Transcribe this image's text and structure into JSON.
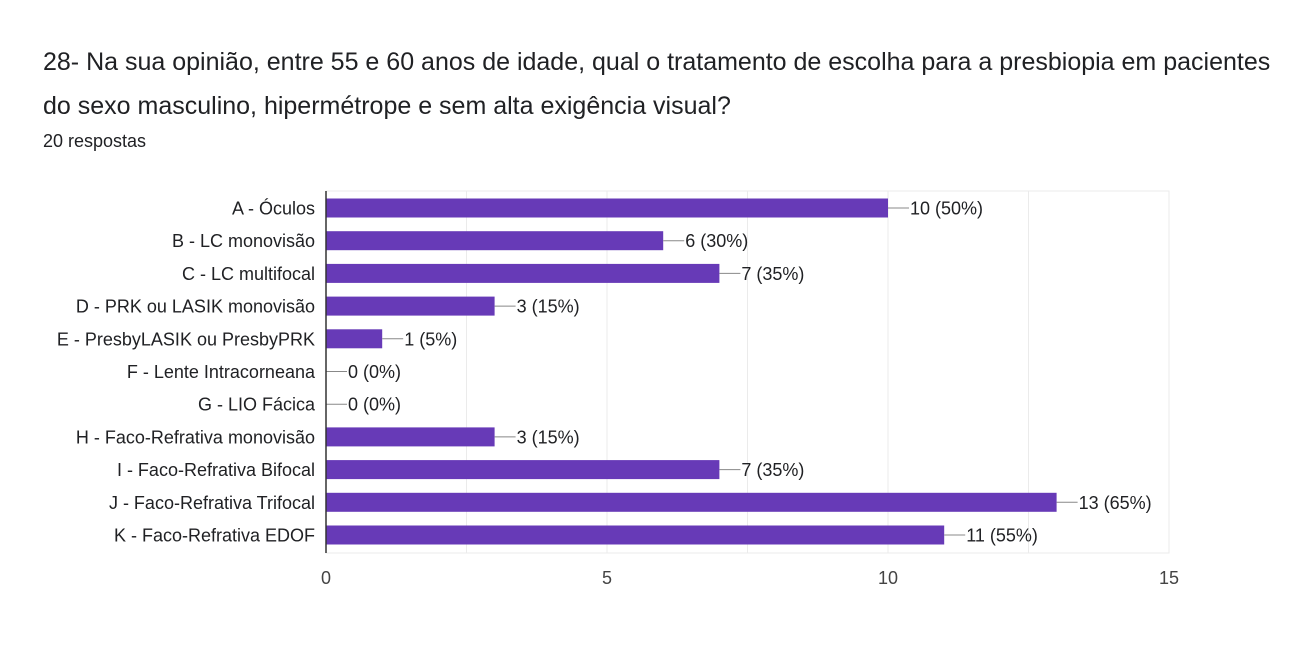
{
  "question": {
    "title": "28- Na sua opinião, entre 55 e 60 anos de idade, qual o tratamento de escolha para a presbiopia em pacientes do sexo masculino, hipermétrope e sem alta exigência visual?",
    "responses": "20 respostas"
  },
  "colors": {
    "bar": "#673ab7",
    "text": "#202124",
    "axis_text": "#444444",
    "grid": "#ebebeb"
  },
  "chart_data": {
    "type": "bar",
    "orientation": "horizontal",
    "title": "",
    "xlabel": "",
    "ylabel": "",
    "categories": [
      "A - Óculos",
      "B - LC monovisão",
      "C - LC multifocal",
      "D - PRK ou LASIK monovisão",
      "E - PresbyLASIK ou PresbyPRK",
      "F - Lente Intracorneana",
      "G - LIO Fácica",
      "H - Faco-Refrativa monovisão",
      "I - Faco-Refrativa Bifocal",
      "J - Faco-Refrativa Trifocal",
      "K - Faco-Refrativa EDOF"
    ],
    "values": [
      10,
      6,
      7,
      3,
      1,
      0,
      0,
      3,
      7,
      13,
      11
    ],
    "data_labels": [
      "10 (50%)",
      "6 (30%)",
      "7 (35%)",
      "3 (15%)",
      "1 (5%)",
      "0 (0%)",
      "0 (0%)",
      "3 (15%)",
      "7 (35%)",
      "13 (65%)",
      "11 (55%)"
    ],
    "xlim": [
      0,
      15
    ],
    "xticks": [
      0,
      5,
      10,
      15
    ],
    "xtick_labels": [
      "0",
      "5",
      "10",
      "15"
    ],
    "grid": true,
    "legend": "none"
  }
}
